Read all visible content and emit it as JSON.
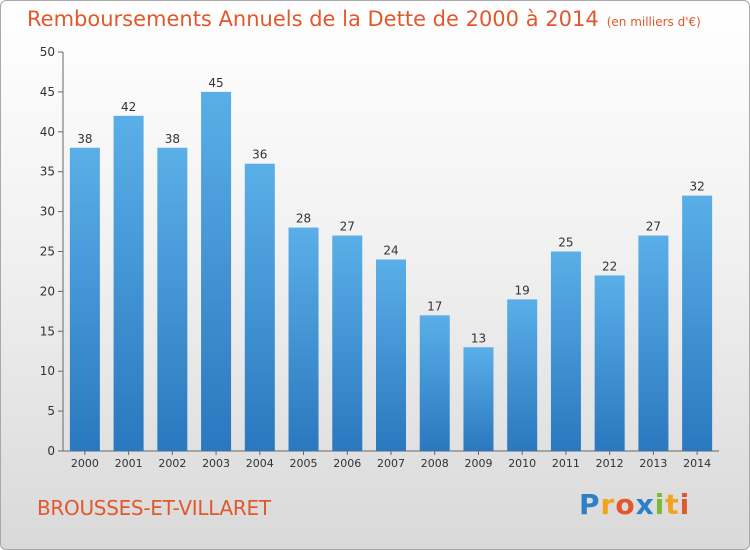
{
  "header": {
    "title": "Remboursements Annuels de la Dette de 2000 à 2014",
    "unit": "(en milliers d'€)"
  },
  "footer": {
    "town": "BROUSSES-ET-VILLARET",
    "logo": "Proxiti"
  },
  "colors": {
    "title": "#e2582c",
    "bar_top": "#5aafe8",
    "bar_bottom": "#2a78be",
    "axis_text": "#333333"
  },
  "chart_data": {
    "type": "bar",
    "categories": [
      "2000",
      "2001",
      "2002",
      "2003",
      "2004",
      "2005",
      "2006",
      "2007",
      "2008",
      "2009",
      "2010",
      "2011",
      "2012",
      "2013",
      "2014"
    ],
    "values": [
      38,
      42,
      38,
      45,
      36,
      28,
      27,
      24,
      17,
      13,
      19,
      25,
      22,
      27,
      32
    ],
    "ylim": [
      0,
      50
    ],
    "yticks": [
      0,
      5,
      10,
      15,
      20,
      25,
      30,
      35,
      40,
      45,
      50
    ],
    "grid": false,
    "legend": "none"
  }
}
